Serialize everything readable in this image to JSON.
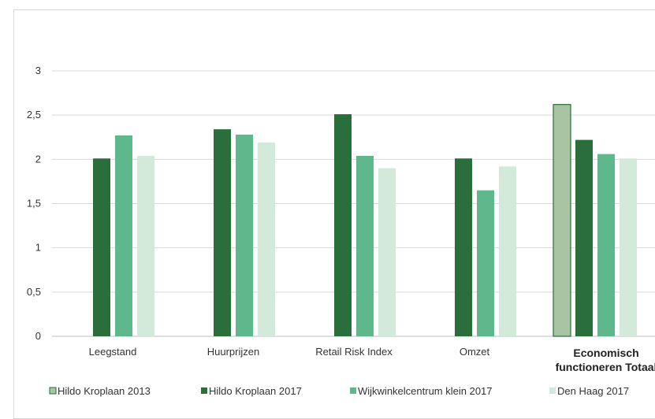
{
  "chart_data": {
    "type": "bar",
    "categories": [
      "Leegstand",
      "Huurprijzen",
      "Retail Risk Index",
      "Omzet",
      "Economisch functioneren Totaal"
    ],
    "series": [
      {
        "name": "Hildo Kroplaan 2013",
        "color": "#a9c4a3",
        "values": [
          null,
          null,
          null,
          null,
          2.62
        ]
      },
      {
        "name": "Hildo Kroplaan 2017",
        "color": "#2a6e3b",
        "values": [
          2.01,
          2.34,
          2.51,
          2.01,
          2.22
        ]
      },
      {
        "name": "Wijkwinkelcentrum klein 2017",
        "color": "#5fb88b",
        "values": [
          2.27,
          2.28,
          2.04,
          1.65,
          2.06
        ]
      },
      {
        "name": "Den Haag 2017",
        "color": "#d3e9d9",
        "values": [
          2.04,
          2.19,
          1.9,
          1.92,
          2.01
        ]
      }
    ],
    "ylim": [
      0,
      3
    ],
    "yticks": [
      "0",
      "0,5",
      "1",
      "1,5",
      "2",
      "2,5",
      "3"
    ],
    "grid": true,
    "legend_position": "bottom"
  }
}
